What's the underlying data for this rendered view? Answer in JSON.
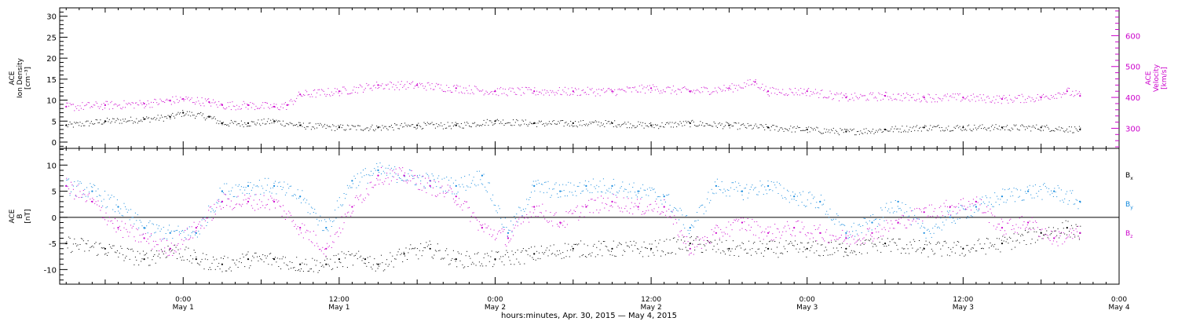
{
  "xlabel": "hours:minutes, Apr. 30, 2015 — May  4, 2015",
  "x_ticks": [
    {
      "time": "0:00",
      "date": "May 1"
    },
    {
      "time": "12:00",
      "date": "May 1"
    },
    {
      "time": "0:00",
      "date": "May 2"
    },
    {
      "time": "12:00",
      "date": "May 2"
    },
    {
      "time": "0:00",
      "date": "May 3"
    },
    {
      "time": "12:00",
      "date": "May 3"
    },
    {
      "time": "0:00",
      "date": "May 4"
    }
  ],
  "colors": {
    "black": "#000000",
    "magenta": "#cc00cc",
    "blue": "#1188dd"
  },
  "chart_data": [
    {
      "type": "scatter",
      "panel": "plasma",
      "x_range_hours": [
        -9.5,
        72
      ],
      "x_unit": "hours since 0:00 May 1, 2015",
      "left_axis": {
        "label_lines": [
          "ACE",
          "Ion Density",
          "[cm⁻³]"
        ],
        "ylim": [
          -1.5,
          32
        ],
        "ticks": [
          0,
          5,
          10,
          15,
          20,
          25,
          30
        ]
      },
      "right_axis": {
        "label_lines": [
          "ACE",
          "Velocity",
          "[km/s]"
        ],
        "ylim": [
          235,
          690
        ],
        "ticks": [
          300,
          400,
          500,
          600
        ],
        "color": "#cc00cc"
      },
      "series": [
        {
          "name": "",
          "axis": "left",
          "color": "#000000",
          "x": [
            -9,
            -6,
            -3,
            -1,
            0,
            2,
            3,
            5,
            7,
            9,
            12,
            15,
            18,
            21,
            24,
            27,
            30,
            33,
            36,
            39,
            42,
            45,
            48,
            51,
            54,
            57,
            60,
            63,
            66,
            69
          ],
          "y": [
            4,
            5,
            5.5,
            6,
            7,
            6,
            4.5,
            4.5,
            5,
            4,
            3.5,
            3.5,
            4,
            4,
            5,
            4.5,
            4.5,
            4.5,
            4,
            4.5,
            4,
            3.5,
            3,
            2.5,
            3,
            3.5,
            3.5,
            3.5,
            3.5,
            3
          ]
        },
        {
          "name": "",
          "axis": "right",
          "color": "#cc00cc",
          "x": [
            -9,
            -6,
            -3,
            -1,
            0,
            2,
            3,
            5,
            7,
            8,
            9,
            12,
            15,
            18,
            21,
            24,
            27,
            30,
            33,
            36,
            39,
            42,
            44,
            45,
            48,
            51,
            54,
            57,
            60,
            63,
            66,
            68,
            69
          ],
          "y": [
            370,
            375,
            380,
            390,
            395,
            385,
            375,
            375,
            370,
            375,
            410,
            420,
            440,
            440,
            430,
            420,
            420,
            420,
            420,
            430,
            420,
            430,
            450,
            420,
            420,
            400,
            405,
            400,
            400,
            395,
            400,
            420,
            405
          ]
        }
      ]
    },
    {
      "type": "scatter",
      "panel": "magnetic",
      "x_range_hours": [
        -9.5,
        72
      ],
      "x_unit": "hours since 0:00 May 1, 2015",
      "left_axis": {
        "label_lines": [
          "ACE",
          "B",
          "[nT]"
        ],
        "ylim": [
          -12.8,
          13.2
        ],
        "ticks": [
          -10,
          -5,
          0,
          5,
          10
        ]
      },
      "zero_line": 0,
      "series": [
        {
          "name": "B",
          "subscript": "x",
          "color": "#000000",
          "x": [
            -9,
            -6,
            -3,
            -1,
            1,
            3,
            5,
            7,
            9,
            11,
            12,
            14,
            15,
            17,
            19,
            21,
            24,
            27,
            30,
            33,
            36,
            39,
            42,
            45,
            48,
            51,
            54,
            57,
            60,
            63,
            66,
            68,
            69
          ],
          "y": [
            -5,
            -6,
            -8,
            -6,
            -8,
            -9,
            -8,
            -8,
            -9,
            -9,
            -8,
            -8,
            -9,
            -7,
            -6,
            -8,
            -8,
            -7,
            -6,
            -6,
            -6,
            -5,
            -6,
            -6,
            -6,
            -6,
            -5,
            -6,
            -6,
            -5,
            -3,
            -2,
            -3
          ]
        },
        {
          "name": "B",
          "subscript": "y",
          "color": "#1188dd",
          "x": [
            -9,
            -7,
            -5,
            -3,
            -1,
            1,
            3,
            5,
            7,
            9,
            11,
            13,
            15,
            17,
            19,
            21,
            23,
            25,
            27,
            29,
            31,
            33,
            35,
            37,
            39,
            41,
            43,
            45,
            47,
            49,
            51,
            53,
            55,
            57,
            59,
            61,
            63,
            65,
            67,
            69
          ],
          "y": [
            6,
            5,
            2,
            -2,
            -3,
            -3,
            5,
            6,
            6,
            4,
            -2,
            7,
            9,
            8,
            7,
            6,
            8,
            -3,
            6,
            5,
            6,
            6,
            5,
            4,
            -2,
            6,
            5,
            6,
            4,
            3,
            -3,
            -1,
            3,
            -3,
            0,
            2,
            4,
            5,
            5,
            3
          ]
        },
        {
          "name": "B",
          "subscript": "z",
          "color": "#cc00cc",
          "x": [
            -9,
            -7,
            -5,
            -3,
            -1,
            1,
            3,
            5,
            7,
            9,
            11,
            13,
            15,
            17,
            19,
            21,
            23,
            25,
            27,
            29,
            31,
            33,
            35,
            37,
            39,
            41,
            43,
            45,
            47,
            49,
            51,
            53,
            55,
            57,
            59,
            61,
            63,
            65,
            67,
            69
          ],
          "y": [
            6,
            3,
            -2,
            -4,
            -6,
            -2,
            3,
            3,
            3,
            -2,
            -6,
            2,
            8,
            8,
            6,
            4,
            -2,
            -4,
            2,
            -1,
            2,
            3,
            2,
            2,
            -6,
            -3,
            -1,
            -3,
            -2,
            -3,
            -4,
            -3,
            -1,
            1,
            2,
            3,
            -2,
            -1,
            -4,
            -3
          ]
        }
      ]
    }
  ]
}
